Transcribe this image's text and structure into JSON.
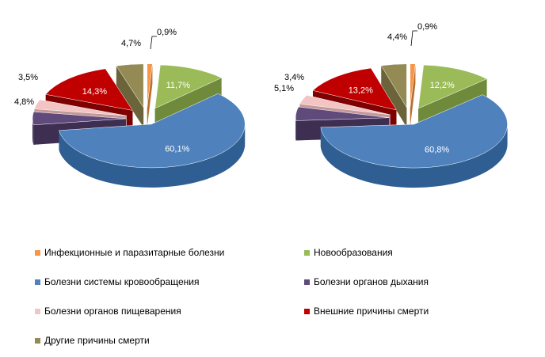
{
  "chart_data": [
    {
      "type": "pie",
      "categories": [
        "Инфекционные и паразитарные болезни",
        "Новообразования",
        "Болезни системы кровообращения",
        "Болезни органов дыхания",
        "Болезни органов пищеварения",
        "Внешние причины смерти",
        "Другие причины смерти"
      ],
      "values": [
        0.9,
        11.7,
        60.1,
        4.8,
        3.5,
        14.3,
        4.7
      ],
      "labels": [
        "0,9%",
        "11,7%",
        "60,1%",
        "4,8%",
        "3,5%",
        "14,3%",
        "4,7%"
      ]
    },
    {
      "type": "pie",
      "categories": [
        "Инфекционные и паразитарные болезни",
        "Новообразования",
        "Болезни системы кровообращения",
        "Болезни органов дыхания",
        "Болезни органов пищеварения",
        "Внешние причины смерти",
        "Другие причины смерти"
      ],
      "values": [
        0.9,
        12.2,
        60.8,
        5.1,
        3.4,
        13.2,
        4.4
      ],
      "labels": [
        "0,9%",
        "12,2%",
        "60,8%",
        "5,1%",
        "3,4%",
        "13,2%",
        "4,4%"
      ]
    }
  ],
  "legend": [
    {
      "label": "Инфекционные и паразитарные болезни",
      "color": "#F79646"
    },
    {
      "label": "Новообразования",
      "color": "#9BBB59"
    },
    {
      "label": "Болезни системы кровообращения",
      "color": "#4F81BD"
    },
    {
      "label": "Болезни органов дыхания",
      "color": "#604A7B"
    },
    {
      "label": "Болезни органов пищеварения",
      "color": "#F2C4C4"
    },
    {
      "label": "Внешние причины смерти",
      "color": "#C00000"
    },
    {
      "label": "Другие причины смерти",
      "color": "#948A54"
    }
  ],
  "colors": {
    "top": [
      "#F79646",
      "#9BBB59",
      "#4F81BD",
      "#604A7B",
      "#F2C4C4",
      "#C00000",
      "#948A54"
    ],
    "side": [
      "#B86E2E",
      "#6E8A3A",
      "#2F5E92",
      "#3E2F52",
      "#C59898",
      "#7E0000",
      "#6B633A"
    ]
  }
}
